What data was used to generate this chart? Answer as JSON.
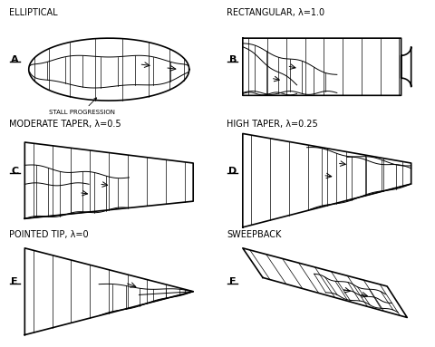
{
  "title_A": "ELLIPTICAL",
  "title_B": "RECTANGULAR, λ=1.0",
  "title_C": "MODERATE TAPER, λ=0.5",
  "title_D": "HIGH TAPER, λ=0.25",
  "title_E": "POINTED TIP, λ=0",
  "title_F": "SWEEPBACK",
  "stall_label": "STALL PROGRESSION",
  "bg_color": "#ffffff",
  "line_color": "#000000",
  "figsize": [
    4.81,
    3.83
  ],
  "dpi": 100
}
